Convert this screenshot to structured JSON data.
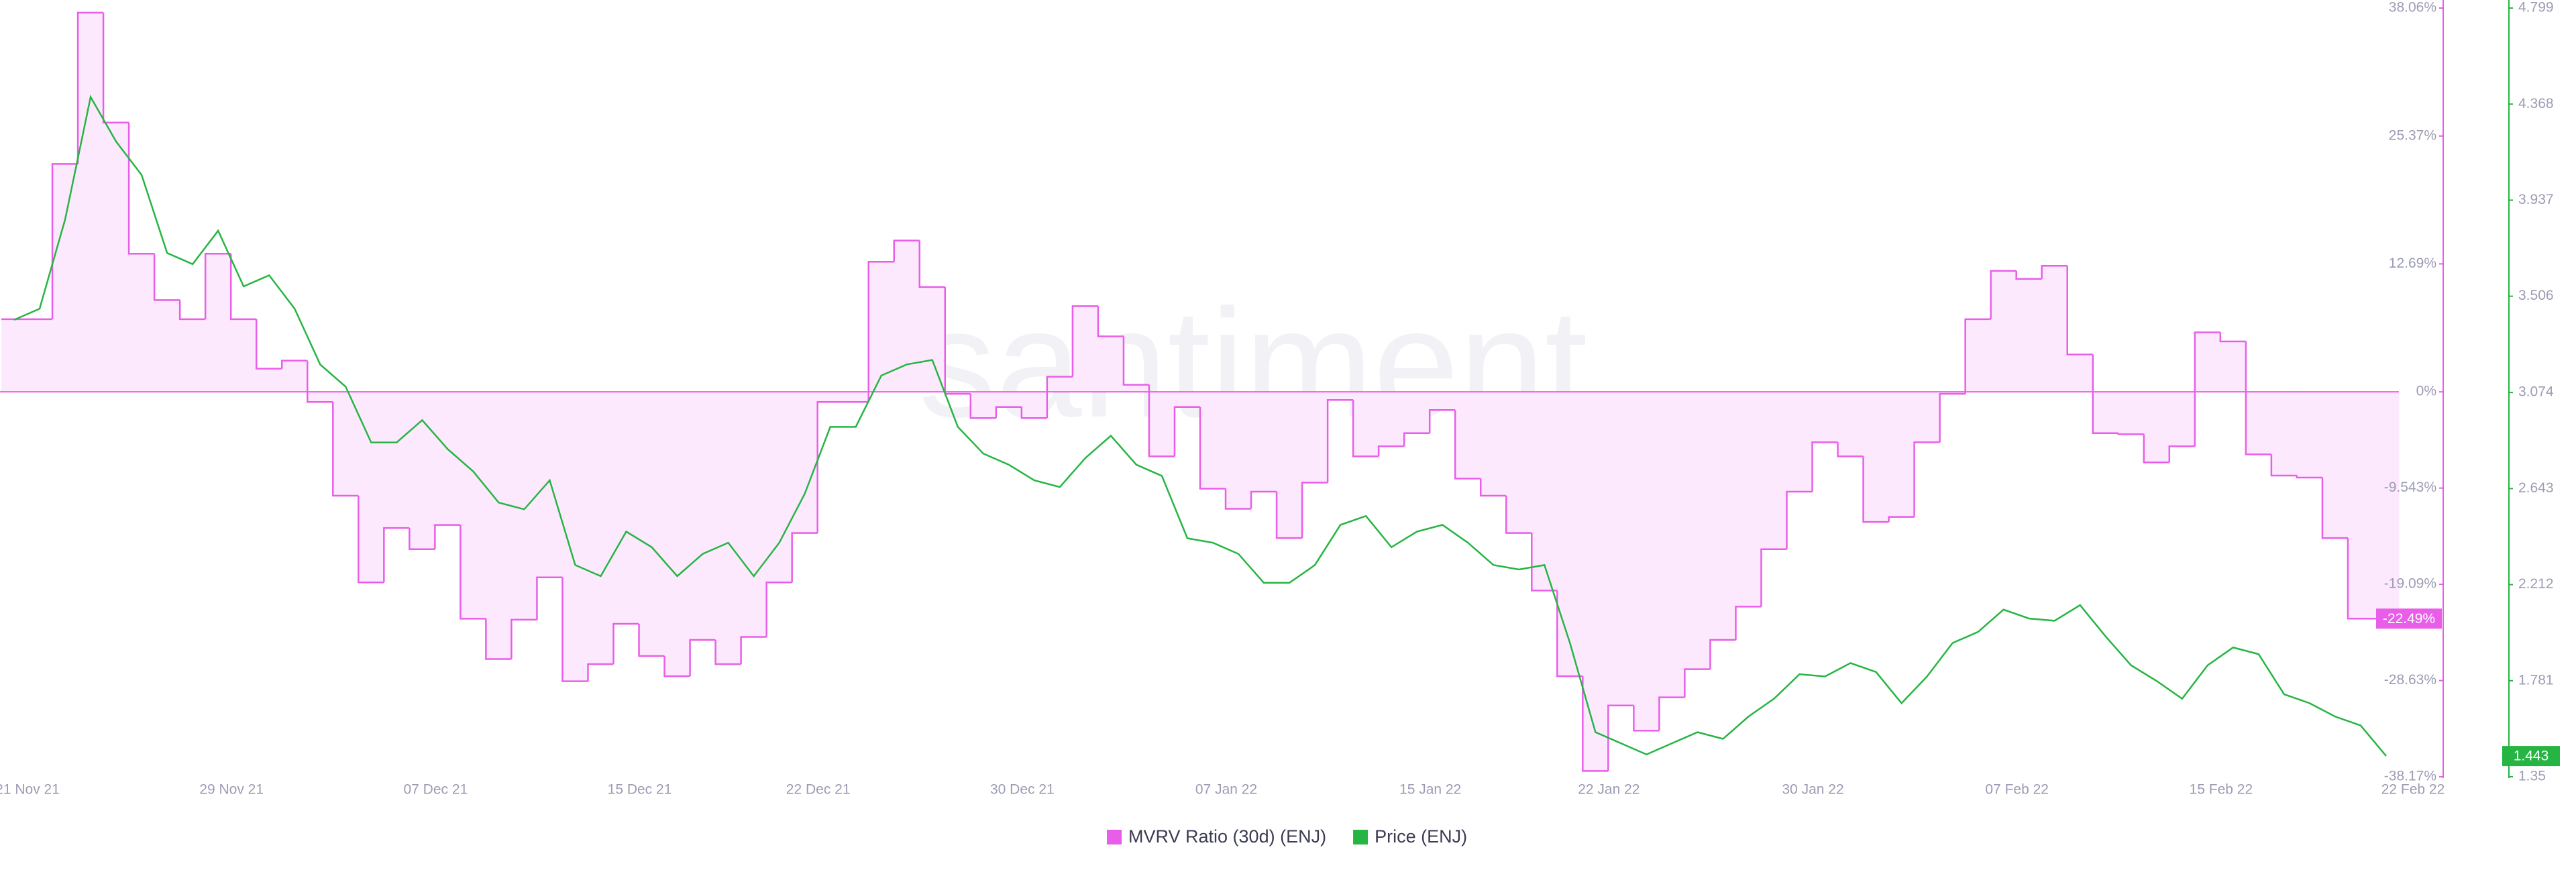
{
  "chart_data": {
    "type": "step-area-line",
    "watermark": "santiment.",
    "categories": [
      "21 Nov 21",
      null,
      null,
      null,
      null,
      null,
      null,
      null,
      "29 Nov 21",
      null,
      null,
      null,
      null,
      null,
      null,
      null,
      "07 Dec 21",
      null,
      null,
      null,
      null,
      null,
      null,
      null,
      "15 Dec 21",
      null,
      null,
      null,
      null,
      null,
      null,
      "22 Dec 21",
      null,
      null,
      null,
      null,
      null,
      null,
      null,
      "30 Dec 21",
      null,
      null,
      null,
      null,
      null,
      null,
      null,
      "07 Jan 22",
      null,
      null,
      null,
      null,
      null,
      null,
      null,
      "15 Jan 22",
      null,
      null,
      null,
      null,
      null,
      null,
      "22 Jan 22",
      null,
      null,
      null,
      null,
      null,
      null,
      null,
      "30 Jan 22",
      null,
      null,
      null,
      null,
      null,
      null,
      null,
      "07 Feb 22",
      null,
      null,
      null,
      null,
      null,
      null,
      null,
      "15 Feb 22",
      null,
      null,
      null,
      null,
      null,
      null,
      "22 Feb 22"
    ],
    "series": [
      {
        "name": "MVRV Ratio (30d) (ENJ)",
        "color": "#e95ee9",
        "fill": "#fde9fd",
        "axis": "y",
        "values": [
          7.2,
          7.2,
          22.6,
          37.6,
          26.7,
          13.7,
          9.1,
          7.2,
          13.7,
          7.2,
          2.3,
          3.1,
          -1,
          -10.3,
          -18.9,
          -13.5,
          -15.6,
          -13.2,
          -22.5,
          -26.5,
          -22.6,
          -18.4,
          -28.7,
          -27,
          -23,
          -26.2,
          -28.2,
          -24.6,
          -27,
          -24.3,
          -18.9,
          -14,
          -1,
          -1,
          12.9,
          15,
          10.4,
          -0.2,
          -2.6,
          -1.5,
          -2.6,
          1.5,
          8.5,
          5.5,
          0.7,
          -6.4,
          -1.5,
          -9.6,
          -11.6,
          -9.9,
          -14.5,
          -9,
          -0.8,
          -6.4,
          -5.4,
          -4.1,
          -1.8,
          -8.6,
          -10.3,
          -14,
          -19.7,
          -28.2,
          -37.6,
          -31.1,
          -33.6,
          -30.3,
          -27.5,
          -24.6,
          -21.3,
          -15.6,
          -9.9,
          -5,
          -6.4,
          -12.9,
          -12.4,
          -5,
          -0.2,
          7.2,
          12,
          11.2,
          12.5,
          3.7,
          -4.1,
          -4.2,
          -7,
          -5.4,
          5.9,
          5,
          -6.2,
          -8.3,
          -8.5,
          -14.5,
          -22.49,
          -22.49
        ],
        "value_labels": [
          null,
          null,
          null,
          null,
          null,
          null,
          null,
          null,
          null,
          null,
          null,
          null,
          null,
          null,
          null,
          null,
          null,
          null,
          null,
          null,
          null,
          null,
          null,
          null,
          null,
          null,
          null,
          null,
          null,
          null,
          null,
          null,
          null,
          null,
          null,
          null,
          null,
          null,
          null,
          null,
          null,
          null,
          null,
          null,
          null,
          null,
          null,
          null,
          null,
          null,
          null,
          null,
          null,
          null,
          null,
          null,
          null,
          null,
          null,
          null,
          null,
          null,
          null,
          null,
          null,
          null,
          null,
          null,
          null,
          null,
          null,
          null,
          null,
          null,
          null,
          null,
          null,
          null,
          null,
          null,
          null,
          null,
          null,
          null,
          null,
          null,
          null,
          null,
          null,
          null,
          null,
          null,
          null,
          "-22.49%"
        ]
      },
      {
        "name": "Price (ENJ)",
        "color": "#26b543",
        "axis": "y2",
        "values": [
          3.4,
          3.45,
          3.85,
          4.4,
          4.2,
          4.05,
          3.7,
          3.65,
          3.8,
          3.55,
          3.6,
          3.45,
          3.2,
          3.1,
          2.85,
          2.85,
          2.95,
          2.82,
          2.72,
          2.58,
          2.55,
          2.68,
          2.3,
          2.25,
          2.45,
          2.38,
          2.25,
          2.35,
          2.4,
          2.25,
          2.4,
          2.62,
          2.92,
          2.92,
          3.15,
          3.2,
          3.22,
          2.92,
          2.8,
          2.75,
          2.68,
          2.65,
          2.78,
          2.88,
          2.75,
          2.7,
          2.42,
          2.4,
          2.35,
          2.22,
          2.22,
          2.3,
          2.48,
          2.52,
          2.38,
          2.45,
          2.48,
          2.4,
          2.3,
          2.28,
          2.3,
          1.95,
          1.55,
          1.5,
          1.45,
          1.5,
          1.55,
          1.52,
          1.62,
          1.7,
          1.81,
          1.8,
          1.86,
          1.82,
          1.68,
          1.8,
          1.95,
          2.0,
          2.1,
          2.06,
          2.05,
          2.12,
          1.98,
          1.85,
          1.78,
          1.7,
          1.85,
          1.93,
          1.9,
          1.72,
          1.68,
          1.62,
          1.58,
          1.443
        ]
      }
    ],
    "ylim": [
      -38.17,
      38.06
    ],
    "yticks": [
      {
        "value": 38.06,
        "label": "38.06%"
      },
      {
        "value": 25.37,
        "label": "25.37%"
      },
      {
        "value": 12.69,
        "label": "12.69%"
      },
      {
        "value": 0,
        "label": "0%"
      },
      {
        "value": -9.543,
        "label": "-9.543%"
      },
      {
        "value": -19.09,
        "label": "-19.09%"
      },
      {
        "value": -28.63,
        "label": "-28.63%"
      },
      {
        "value": -38.17,
        "label": "-38.17%"
      }
    ],
    "y2lim": [
      1.35,
      4.799
    ],
    "y2ticks": [
      4.799,
      4.368,
      3.937,
      3.506,
      3.074,
      2.643,
      2.212,
      1.781,
      1.35
    ],
    "zero_line": true
  }
}
